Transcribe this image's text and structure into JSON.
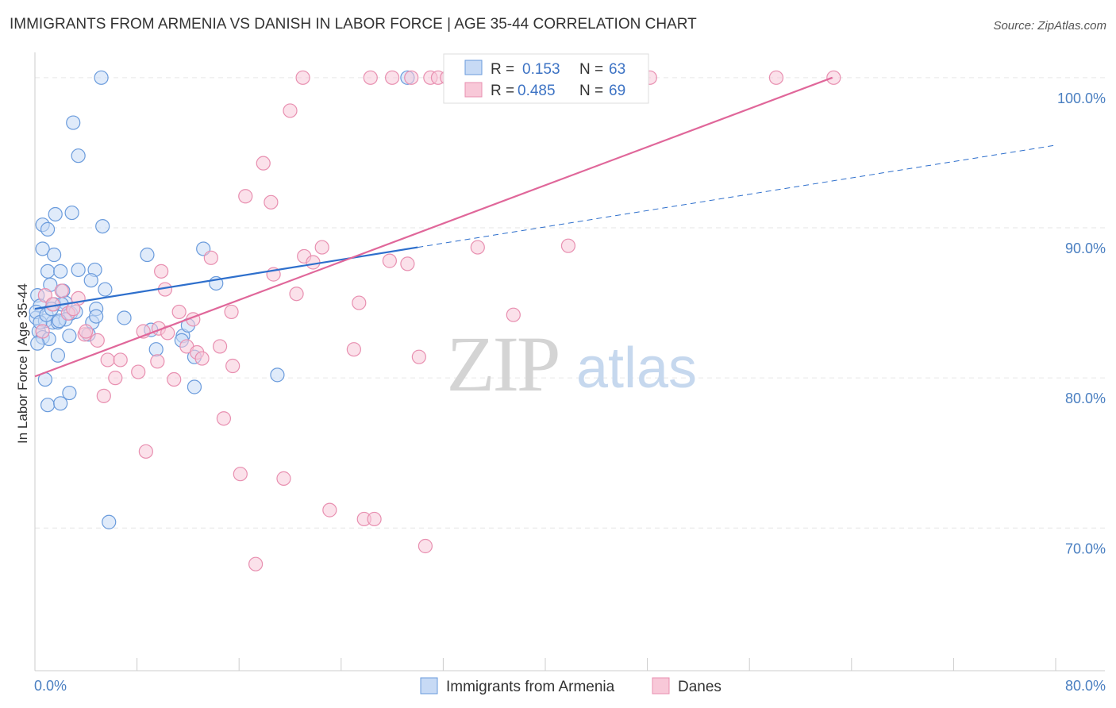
{
  "title": "IMMIGRANTS FROM ARMENIA VS DANISH IN LABOR FORCE | AGE 35-44 CORRELATION CHART",
  "source": "Source: ZipAtlas.com",
  "watermark": {
    "zip": "ZIP",
    "atlas": "atlas"
  },
  "chart_data": {
    "type": "scatter",
    "title": "IMMIGRANTS FROM ARMENIA VS DANISH IN LABOR FORCE | AGE 35-44 CORRELATION CHART",
    "xlabel": "",
    "ylabel": "In Labor Force | Age 35-44",
    "xlim": [
      0,
      80
    ],
    "ylim": [
      60.5,
      102
    ],
    "x_tick_labels": [
      "0.0%",
      "80.0%"
    ],
    "y_ticks": [
      70,
      80,
      90,
      100
    ],
    "y_tick_labels": [
      "70.0%",
      "80.0%",
      "90.0%",
      "100.0%"
    ],
    "grid": true,
    "legend_position": "top-center",
    "legend": [
      {
        "r_label": "R =",
        "r_value": "0.153",
        "n_label": "N =",
        "n_value": "63"
      },
      {
        "r_label": "R =",
        "r_value": "0.485",
        "n_label": "N =",
        "n_value": "69"
      }
    ],
    "series": [
      {
        "name": "Immigrants from Armenia",
        "color": "#6a9bdc",
        "fill": "#c7daf5",
        "line_color": "#2e6fcc",
        "trend": {
          "x0": 0,
          "y0": 84.6,
          "x1": 30,
          "y1": 88.7,
          "dash_to_x": 80,
          "dash_to_y": 95.5
        },
        "points": [
          [
            5.2,
            100
          ],
          [
            29.2,
            100
          ],
          [
            3,
            97
          ],
          [
            3.4,
            94.8
          ],
          [
            1.6,
            90.9
          ],
          [
            2.9,
            91
          ],
          [
            0.6,
            90.2
          ],
          [
            1,
            89.9
          ],
          [
            5.3,
            90.1
          ],
          [
            0.6,
            88.6
          ],
          [
            1.5,
            88.2
          ],
          [
            8.8,
            88.2
          ],
          [
            13.2,
            88.6
          ],
          [
            1,
            87.1
          ],
          [
            2,
            87.1
          ],
          [
            3.4,
            87.2
          ],
          [
            4.7,
            87.2
          ],
          [
            14.2,
            86.3
          ],
          [
            1.2,
            86.2
          ],
          [
            2.2,
            85.8
          ],
          [
            5.5,
            85.9
          ],
          [
            0.2,
            85.5
          ],
          [
            0.4,
            84.8
          ],
          [
            2.4,
            85
          ],
          [
            4.4,
            86.5
          ],
          [
            4.8,
            84.6
          ],
          [
            1.5,
            84.9
          ],
          [
            2.8,
            84.3
          ],
          [
            0.1,
            84
          ],
          [
            0.8,
            83.8
          ],
          [
            1.4,
            83.7
          ],
          [
            1.8,
            83.7
          ],
          [
            2.4,
            83.9
          ],
          [
            4.5,
            83.7
          ],
          [
            4.8,
            84.1
          ],
          [
            7,
            84
          ],
          [
            0.3,
            83.1
          ],
          [
            9.1,
            83.2
          ],
          [
            0.6,
            82.7
          ],
          [
            1.1,
            82.6
          ],
          [
            2.7,
            82.8
          ],
          [
            4.2,
            82.9
          ],
          [
            11.6,
            82.8
          ],
          [
            12,
            83.5
          ],
          [
            0.2,
            82.3
          ],
          [
            11.5,
            82.5
          ],
          [
            1.8,
            81.5
          ],
          [
            9.5,
            81.9
          ],
          [
            12.5,
            81.4
          ],
          [
            0.8,
            79.9
          ],
          [
            12.5,
            79.4
          ],
          [
            19,
            80.2
          ],
          [
            2.7,
            79
          ],
          [
            1,
            78.2
          ],
          [
            2,
            78.3
          ],
          [
            5.8,
            70.4
          ],
          [
            0.1,
            84.4
          ],
          [
            2.1,
            84.9
          ],
          [
            3.2,
            84.4
          ],
          [
            0.4,
            83.7
          ],
          [
            1.9,
            83.8
          ],
          [
            0.9,
            84.2
          ],
          [
            1.3,
            84.6
          ]
        ]
      },
      {
        "name": "Danes",
        "color": "#e88fb0",
        "fill": "#f8c8d8",
        "line_color": "#e0679a",
        "trend": {
          "x0": 0,
          "y0": 80.1,
          "x1": 62.5,
          "y1": 100
        },
        "points": [
          [
            21,
            100
          ],
          [
            26.3,
            100
          ],
          [
            28,
            100
          ],
          [
            29.5,
            100
          ],
          [
            31,
            100
          ],
          [
            31.6,
            100
          ],
          [
            32.3,
            100
          ],
          [
            35.1,
            100
          ],
          [
            47.2,
            100
          ],
          [
            48.2,
            100
          ],
          [
            58.1,
            100
          ],
          [
            62.6,
            100
          ],
          [
            20,
            97.8
          ],
          [
            17.9,
            94.3
          ],
          [
            16.5,
            92.1
          ],
          [
            18.5,
            91.7
          ],
          [
            22.5,
            88.7
          ],
          [
            21.1,
            88.1
          ],
          [
            13.8,
            88
          ],
          [
            21.8,
            87.7
          ],
          [
            27.8,
            87.8
          ],
          [
            29.2,
            87.6
          ],
          [
            34.7,
            88.7
          ],
          [
            41.8,
            88.8
          ],
          [
            9.9,
            87.1
          ],
          [
            18.7,
            86.9
          ],
          [
            10.2,
            85.9
          ],
          [
            20.5,
            85.6
          ],
          [
            2.1,
            85.8
          ],
          [
            0.8,
            85.5
          ],
          [
            1.4,
            84.9
          ],
          [
            3.4,
            85.3
          ],
          [
            25.4,
            85
          ],
          [
            11.3,
            84.4
          ],
          [
            15.4,
            84.4
          ],
          [
            37.5,
            84.2
          ],
          [
            2.6,
            84.3
          ],
          [
            3,
            84.6
          ],
          [
            12.4,
            83.9
          ],
          [
            9.7,
            83.3
          ],
          [
            8.5,
            83.1
          ],
          [
            10.4,
            83
          ],
          [
            3.9,
            82.9
          ],
          [
            4.9,
            82.5
          ],
          [
            11.9,
            82.1
          ],
          [
            14.5,
            82.1
          ],
          [
            25,
            81.9
          ],
          [
            5.7,
            81.2
          ],
          [
            6.7,
            81.2
          ],
          [
            9.6,
            81.1
          ],
          [
            12.7,
            81.7
          ],
          [
            13.1,
            81.3
          ],
          [
            15.5,
            80.8
          ],
          [
            30.1,
            81.4
          ],
          [
            8.1,
            80.4
          ],
          [
            6.3,
            80
          ],
          [
            10.9,
            79.9
          ],
          [
            5.4,
            78.8
          ],
          [
            14.8,
            77.3
          ],
          [
            8.7,
            75.1
          ],
          [
            16.1,
            73.6
          ],
          [
            19.5,
            73.3
          ],
          [
            23.1,
            71.2
          ],
          [
            25.8,
            70.6
          ],
          [
            26.6,
            70.6
          ],
          [
            30.6,
            68.8
          ],
          [
            17.3,
            67.6
          ],
          [
            0.6,
            83.1
          ],
          [
            4,
            83.1
          ]
        ]
      }
    ]
  },
  "bottom_legend": {
    "series_a": "Immigrants from Armenia",
    "series_b": "Danes"
  }
}
